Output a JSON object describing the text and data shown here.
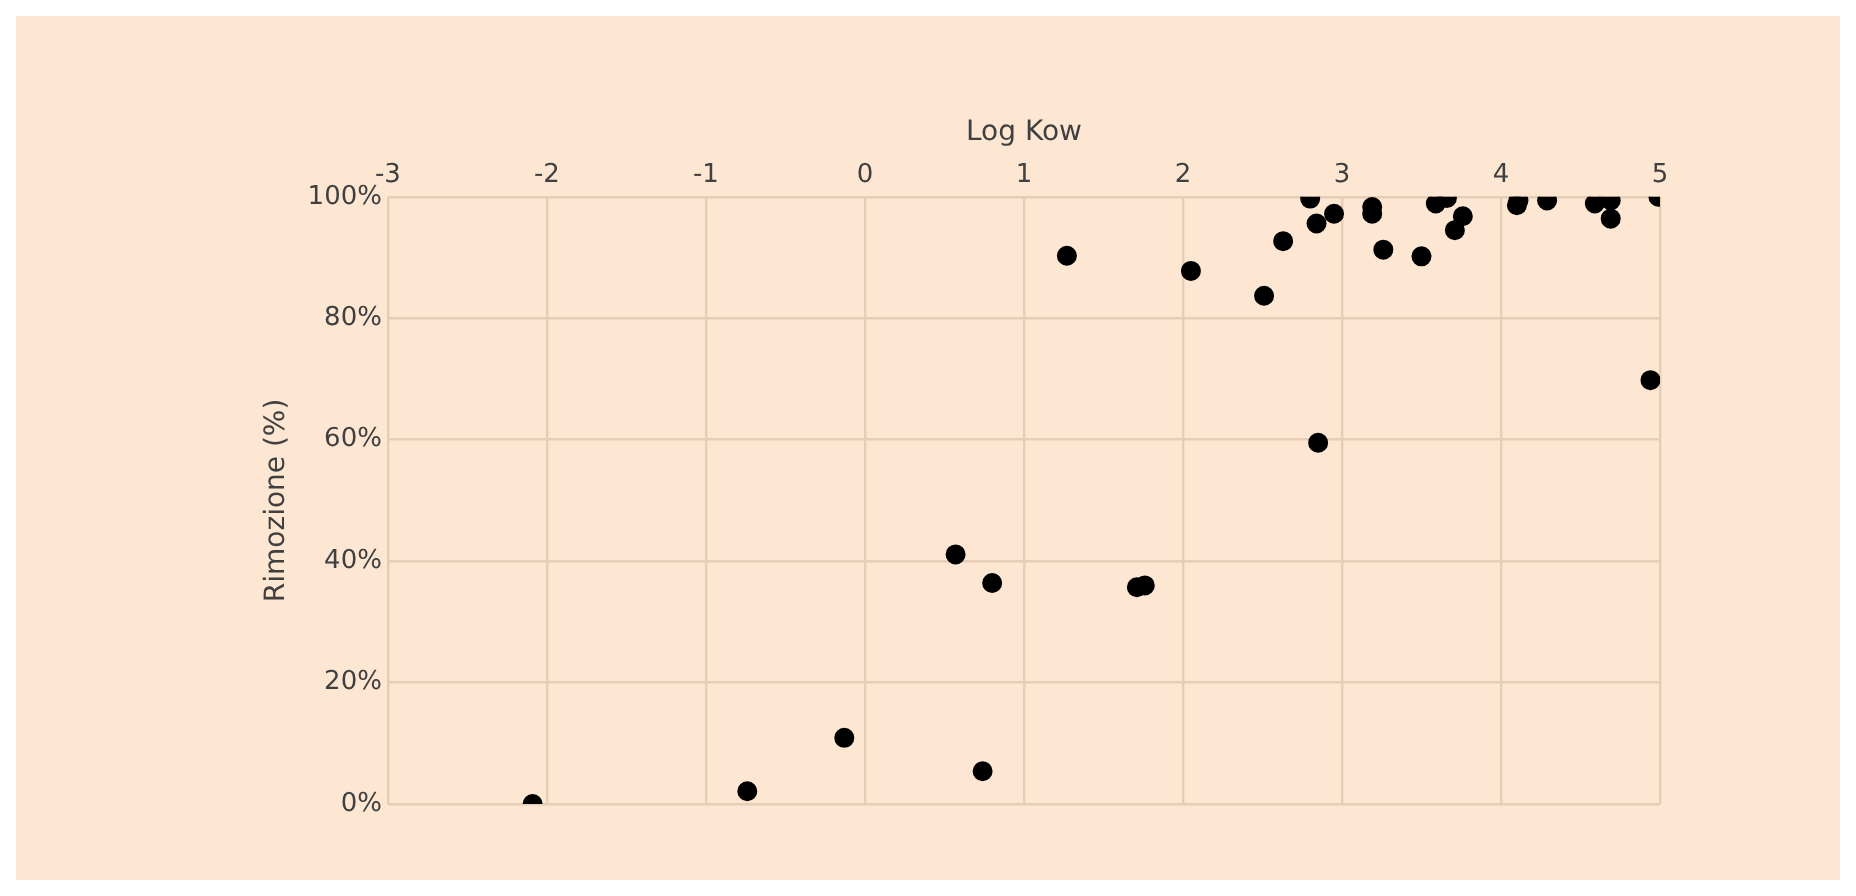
{
  "chart_data": {
    "type": "scatter",
    "xlabel": "Log Kow",
    "ylabel": "Rimozione (%)",
    "x": [
      -2.09,
      -0.74,
      -0.13,
      0.74,
      0.57,
      0.8,
      1.71,
      1.76,
      1.27,
      2.05,
      2.51,
      2.63,
      2.8,
      2.84,
      2.85,
      2.95,
      3.19,
      3.19,
      3.26,
      3.5,
      3.59,
      3.66,
      3.71,
      3.76,
      4.1,
      4.11,
      4.29,
      4.59,
      4.69,
      4.69,
      4.94,
      4.99
    ],
    "values": [
      0,
      2.1,
      10.9,
      5.4,
      41.1,
      36.4,
      35.7,
      36.0,
      90.3,
      87.8,
      83.7,
      92.7,
      99.7,
      95.6,
      59.5,
      97.2,
      98.3,
      97.2,
      91.3,
      90.2,
      98.9,
      99.8,
      94.5,
      96.8,
      98.6,
      99.4,
      99.4,
      98.9,
      99.4,
      96.4,
      69.8,
      100
    ],
    "color": "#000000",
    "marker": "circle",
    "xlim": [
      -3,
      5
    ],
    "xticks": [
      -3,
      -2,
      -1,
      0,
      1,
      2,
      3,
      4,
      5
    ],
    "ylim": [
      0,
      100
    ],
    "yticks": [
      {
        "value": 0,
        "label": "0%"
      },
      {
        "value": 20,
        "label": "20%"
      },
      {
        "value": 40,
        "label": "40%"
      },
      {
        "value": 60,
        "label": "60%"
      },
      {
        "value": 80,
        "label": "80%"
      },
      {
        "value": 100,
        "label": "100%"
      }
    ],
    "grid": true,
    "legend": false
  }
}
